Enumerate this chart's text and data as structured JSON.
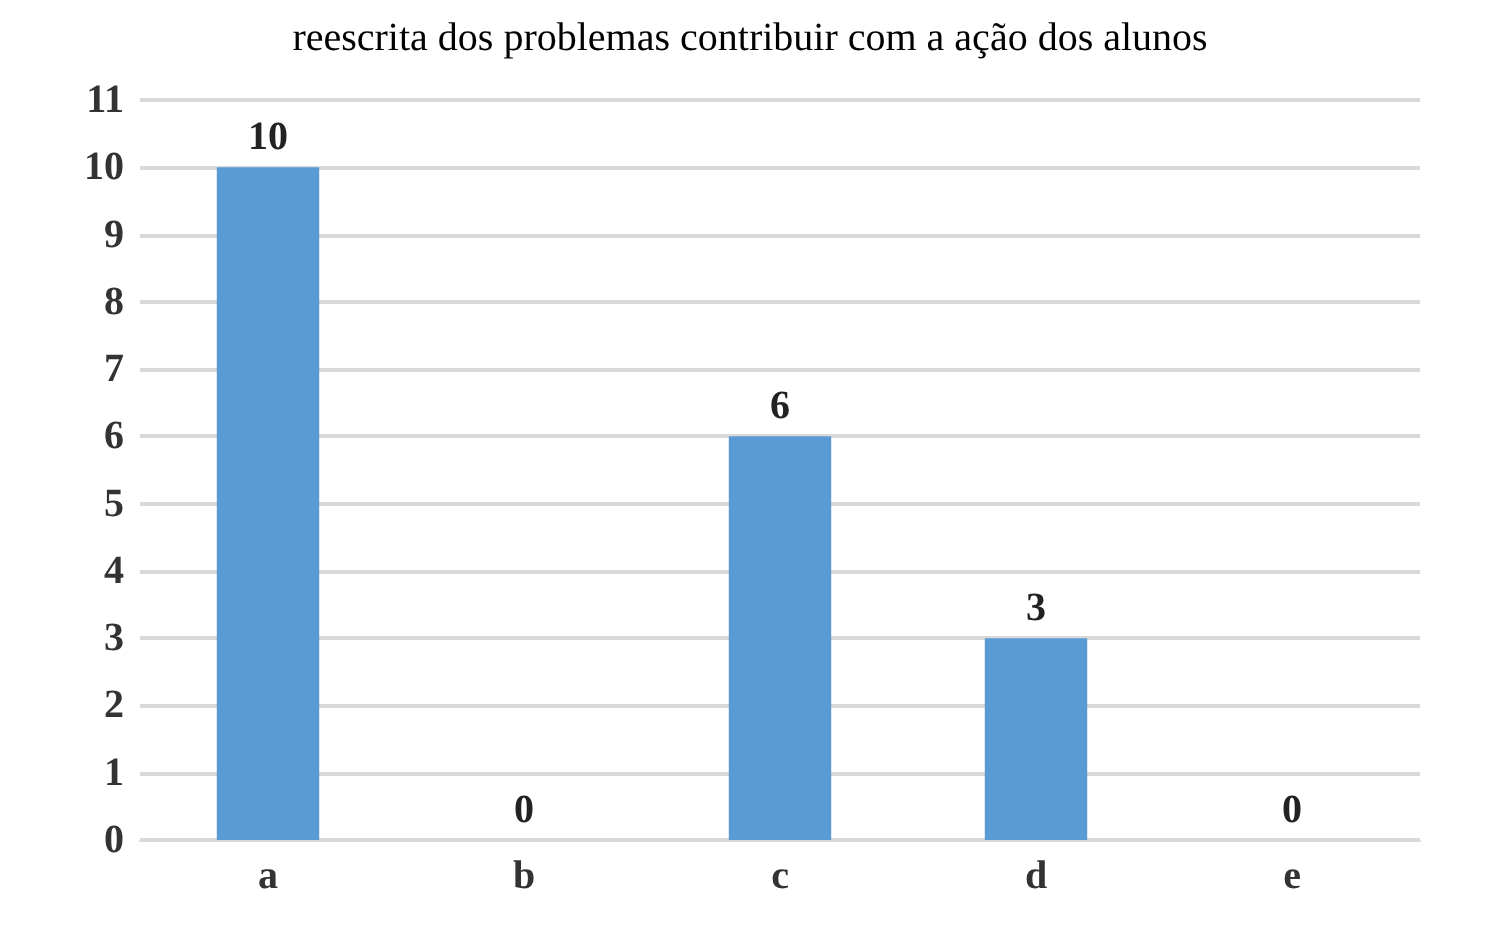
{
  "chart_data": {
    "type": "bar",
    "title": "reescrita dos problemas contribuir com a ação dos alunos",
    "categories": [
      "a",
      "b",
      "c",
      "d",
      "e"
    ],
    "values": [
      10,
      0,
      6,
      3,
      0
    ],
    "color": "#5b9bd5",
    "ylim": [
      0,
      11
    ],
    "yticks": [
      0,
      1,
      2,
      3,
      4,
      5,
      6,
      7,
      8,
      9,
      10,
      11
    ],
    "grid": "y",
    "data_labels": true
  }
}
